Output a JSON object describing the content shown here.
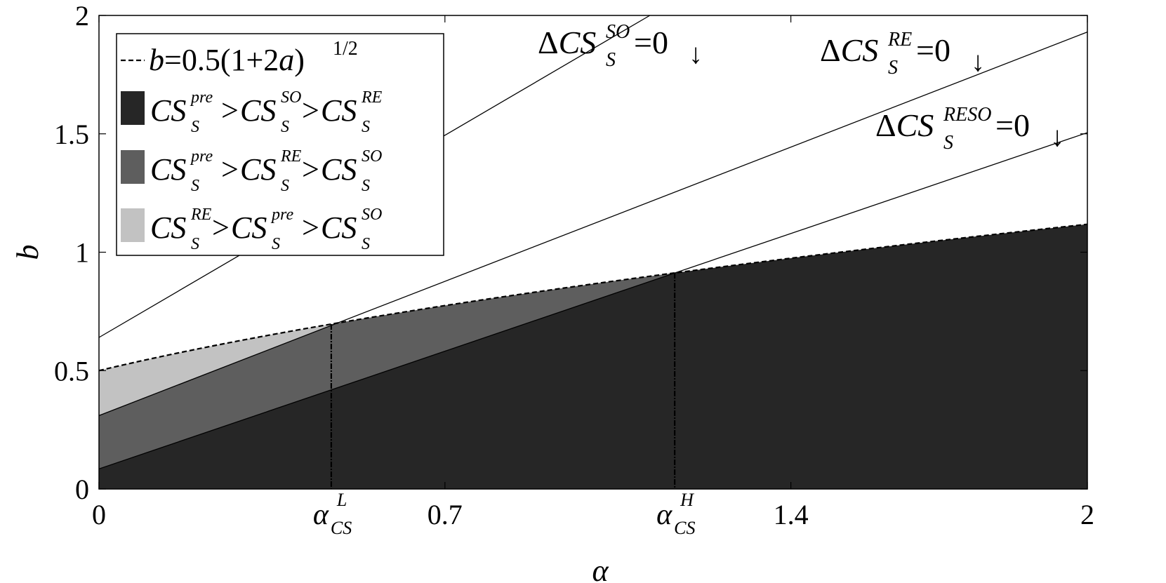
{
  "chart_data": {
    "type": "area",
    "xlabel": "α",
    "ylabel": "b",
    "xlim": [
      0,
      2
    ],
    "ylim": [
      0,
      2
    ],
    "grid": false,
    "legend_position": "top-left",
    "xticks": [
      {
        "value": 0,
        "label": "0"
      },
      {
        "value": 0.7,
        "label": "0.7"
      },
      {
        "value": 1.4,
        "label": "1.4"
      },
      {
        "value": 2,
        "label": "2"
      }
    ],
    "yticks": [
      {
        "value": 0,
        "label": "0"
      },
      {
        "value": 0.5,
        "label": "0.5"
      },
      {
        "value": 1,
        "label": "1"
      },
      {
        "value": 1.5,
        "label": "1.5"
      },
      {
        "value": 2,
        "label": "2"
      }
    ],
    "special_ticks": [
      {
        "name": "alpha-L",
        "value": 0.47,
        "base": "α",
        "sub": "CS",
        "sup": "L"
      },
      {
        "name": "alpha-H",
        "value": 1.165,
        "base": "α",
        "sub": "CS",
        "sup": "H"
      }
    ],
    "curve": {
      "name": "b=0.5(1+2a)^1/2",
      "formula": "b = 0.5*sqrt(1+2a)",
      "style": "dashed"
    },
    "lines": [
      {
        "name": "ΔCS_S^SO=0",
        "intercept": 0.64,
        "slope": 1.22
      },
      {
        "name": "ΔCS_S^RE=0",
        "intercept": 0.31,
        "slope": 0.81
      },
      {
        "name": "ΔCS_S^RESO=0",
        "intercept": 0.085,
        "slope": 0.71
      }
    ],
    "regions": [
      {
        "name": "CS_S^pre > CS_S^SO > CS_S^RE",
        "color": "#262626"
      },
      {
        "name": "CS_S^pre > CS_S^RE > CS_S^SO",
        "color": "#5e5e5e"
      },
      {
        "name": "CS_S^RE > CS_S^pre > CS_S^SO",
        "color": "#c2c2c2"
      }
    ],
    "line_labels": [
      {
        "base": "ΔCS",
        "sub": "S",
        "sup": "SO",
        "tail": "=0",
        "arrow": "↓"
      },
      {
        "base": "ΔCS",
        "sub": "S",
        "sup": "RE",
        "tail": "=0",
        "arrow": "↓"
      },
      {
        "base": "ΔCS",
        "sub": "S",
        "sup": "RESO",
        "tail": "=0",
        "arrow": "↓"
      }
    ],
    "legend": {
      "curve_entry": {
        "base": "b",
        "text": "=0.5(1+2",
        "var": "a",
        "close": ")",
        "sup": "1/2"
      },
      "entries": [
        {
          "terms": [
            {
              "sup": "pre"
            },
            {
              "sup": "SO"
            },
            {
              "sup": "RE"
            }
          ],
          "color": "#262626"
        },
        {
          "terms": [
            {
              "sup": "pre"
            },
            {
              "sup": "RE"
            },
            {
              "sup": "SO"
            }
          ],
          "color": "#5e5e5e"
        },
        {
          "terms": [
            {
              "sup": "RE"
            },
            {
              "sup": "pre"
            },
            {
              "sup": "SO"
            }
          ],
          "color": "#c2c2c2"
        }
      ],
      "term_base": "CS",
      "term_sub": "S",
      "separator": ">"
    },
    "colors": {
      "dark": "#262626",
      "mid": "#5e5e5e",
      "light": "#c2c2c2",
      "line": "#000000",
      "background": "#ffffff"
    }
  }
}
